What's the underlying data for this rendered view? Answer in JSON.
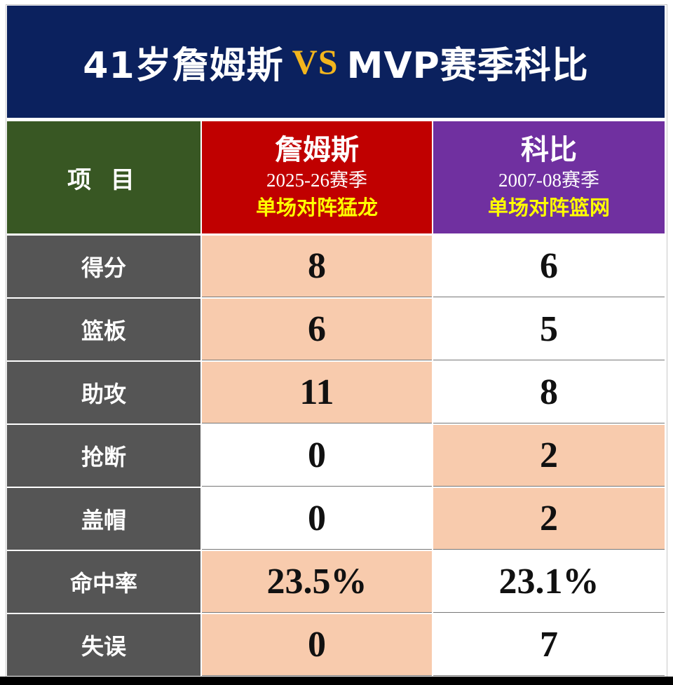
{
  "title": {
    "left": "41岁詹姆斯",
    "vs": "VS",
    "right": "MVP赛季科比"
  },
  "colors": {
    "title_bg": "#0b215e",
    "vs": "#f3b51d",
    "label_header_bg": "#385723",
    "james_header_bg": "#c00000",
    "kobe_header_bg": "#7030a0",
    "label_bg": "#555555",
    "highlight": "#f8cbad",
    "opponent_text": "#ffff00"
  },
  "header": {
    "item_label": "项 目",
    "james": {
      "name": "詹姆斯",
      "season": "2025-26赛季",
      "opponent": "单场对阵猛龙"
    },
    "kobe": {
      "name": "科比",
      "season": "2007-08赛季",
      "opponent": "单场对阵篮网"
    }
  },
  "rows": [
    {
      "label": "得分",
      "james": "8",
      "kobe": "6",
      "winner": "james"
    },
    {
      "label": "篮板",
      "james": "6",
      "kobe": "5",
      "winner": "james"
    },
    {
      "label": "助攻",
      "james": "11",
      "kobe": "8",
      "winner": "james"
    },
    {
      "label": "抢断",
      "james": "0",
      "kobe": "2",
      "winner": "kobe"
    },
    {
      "label": "盖帽",
      "james": "0",
      "kobe": "2",
      "winner": "kobe"
    },
    {
      "label": "命中率",
      "james": "23.5%",
      "kobe": "23.1%",
      "winner": "james"
    },
    {
      "label": "失误",
      "james": "0",
      "kobe": "7",
      "winner": "james"
    }
  ]
}
